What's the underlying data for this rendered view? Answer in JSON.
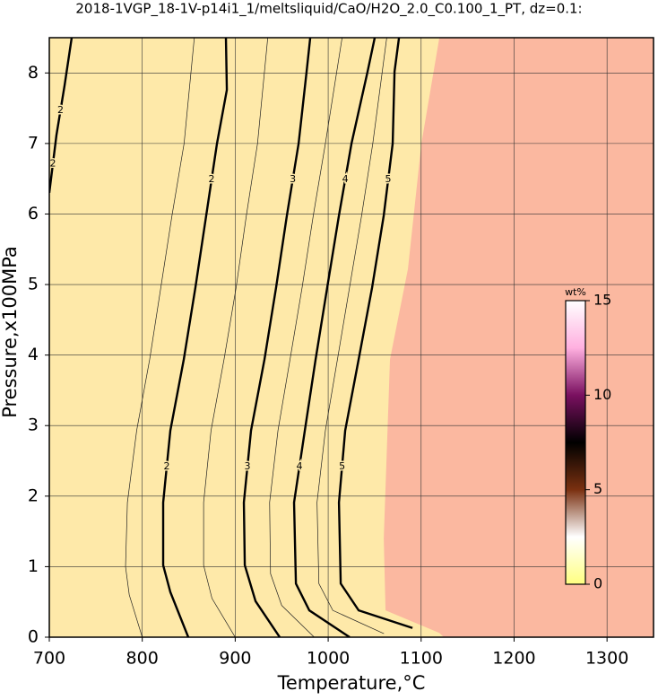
{
  "chart_data": {
    "type": "contour",
    "title": "2018-1VGP_18-1V-p14i1_1/meltsliquid/CaO/H2O_2.0_C0.100_1_PT, dz=0.1:",
    "x_label": "Temperature,°C",
    "y_label": "Pressure,x100MPa",
    "xlim": [
      700,
      1350
    ],
    "ylim": [
      0,
      8.5
    ],
    "xticks": [
      700,
      800,
      900,
      1000,
      1100,
      1200,
      1300
    ],
    "yticks": [
      0,
      1,
      2,
      3,
      4,
      5,
      6,
      7,
      8
    ],
    "grid": true,
    "background_color": "#fee9a9",
    "region_color": "#fbb8a0",
    "region_boundary": {
      "x": [
        1124.4,
        1119.6,
        1061.7,
        1059.8,
        1066.5,
        1085.8,
        1100.3,
        1119.6
      ],
      "y": [
        0,
        0.06,
        0.38,
        1.4,
        3.94,
        5.22,
        7.0,
        8.5
      ]
    },
    "series": [
      {
        "name": "2",
        "color": "#000000",
        "x": [
          700,
          707.7,
          716.4,
          724.1
        ],
        "y": [
          6.3,
          7.12,
          7.82,
          8.5
        ]
      },
      {
        "name": "2",
        "color": "#000000",
        "x": [
          849.5,
          830.2,
          822.5,
          822.5,
          830.2,
          844.7,
          857.2,
          868.8,
          880.4,
          891.0,
          890.0
        ],
        "y": [
          0,
          0.64,
          1.02,
          1.91,
          2.93,
          3.94,
          4.96,
          5.98,
          7.0,
          7.76,
          8.5
        ]
      },
      {
        "name": "3",
        "color": "#000000",
        "x": [
          947.9,
          921.9,
          910.3,
          909.3,
          917.0,
          931.5,
          944.0,
          955.6,
          968.2,
          976.8,
          980.7
        ],
        "y": [
          0,
          0.51,
          1.02,
          1.91,
          2.93,
          3.94,
          4.96,
          5.98,
          7.0,
          8.02,
          8.5
        ]
      },
      {
        "name": "4",
        "color": "#000000",
        "x": [
          1023.1,
          979.7,
          965.3,
          963.3,
          974.9,
          986.5,
          999.0,
          1011.6,
          1025.1,
          1042.4,
          1050.1
        ],
        "y": [
          0,
          0.38,
          0.76,
          1.91,
          2.93,
          3.94,
          4.96,
          5.98,
          7.0,
          8.02,
          8.5
        ]
      },
      {
        "name": "5",
        "color": "#000000",
        "x": [
          1090.7,
          1032.8,
          1013.5,
          1011.6,
          1018.3,
          1032.8,
          1047.3,
          1059.8,
          1069.4,
          1071.4,
          1076.2
        ],
        "y": [
          0.13,
          0.38,
          0.76,
          1.91,
          2.93,
          3.94,
          4.96,
          5.98,
          7.0,
          8.02,
          8.5
        ]
      }
    ],
    "minor_contours": [
      {
        "x": [
          800.0,
          786.0,
          782.0,
          784.0,
          794.0,
          808.0,
          820.0,
          832.0,
          845.0,
          856.0
        ],
        "y": [
          0,
          0.6,
          1.0,
          1.91,
          2.93,
          3.94,
          4.96,
          5.98,
          7.0,
          8.5
        ]
      },
      {
        "x": [
          900.0,
          875.0,
          866.0,
          866.0,
          874.0,
          888.0,
          901.0,
          912.0,
          924.0,
          935.0
        ],
        "y": [
          0,
          0.55,
          1.02,
          1.91,
          2.93,
          3.94,
          4.96,
          5.98,
          7.0,
          8.5
        ]
      },
      {
        "x": [
          985.0,
          950.0,
          938.0,
          937.0,
          946.0,
          959.0,
          972.0,
          984.0,
          997.0,
          1015.0
        ],
        "y": [
          0,
          0.45,
          0.9,
          1.91,
          2.93,
          3.94,
          4.96,
          5.98,
          7.0,
          8.5
        ]
      },
      {
        "x": [
          1060.0,
          1005.0,
          990.0,
          988.0,
          997.0,
          1010.0,
          1023.0,
          1036.0,
          1048.0,
          1063.0
        ],
        "y": [
          0.05,
          0.38,
          0.76,
          1.91,
          2.93,
          3.94,
          4.96,
          5.98,
          7.0,
          8.5
        ]
      }
    ],
    "colorbar": {
      "label": "wt%",
      "clim": [
        0,
        15
      ],
      "ticks": [
        0,
        5,
        10,
        15
      ],
      "colors": [
        "#ffff80",
        "#ffffff",
        "#7a3010",
        "#000000",
        "#7a1060",
        "#ffb0e0",
        "#ffffff"
      ]
    }
  }
}
